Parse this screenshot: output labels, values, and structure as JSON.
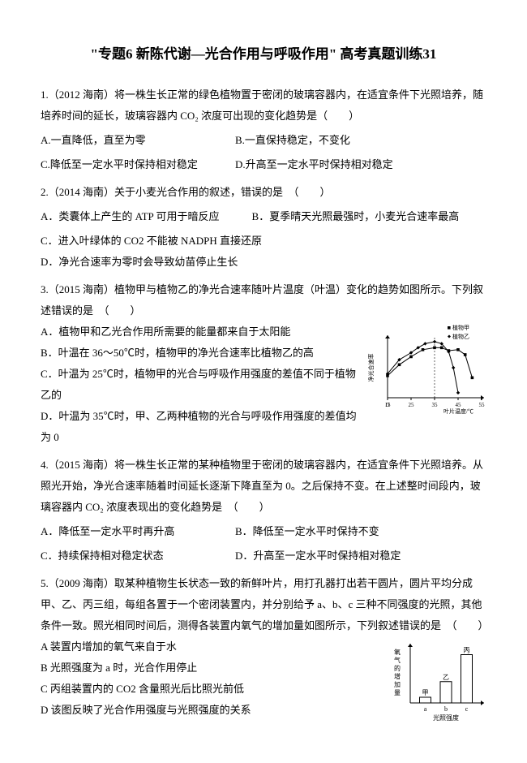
{
  "title": "\"专题6 新陈代谢—光合作用与呼吸作用\" 高考真题训练31",
  "q1": {
    "stem": "1.（2012 海南）将一株生长正常的绿色植物置于密闭的玻璃容器内，在适宜条件下光照培养，随培养时间的延长，玻璃容器内 CO₂ 浓度可出现的变化趋势是（　　）",
    "a": "A.一直降低，直至为零",
    "b": "B.一直保持稳定，不变化",
    "c": "C.降低至一定水平时保持相对稳定",
    "d": "D.升高至一定水平时保持相对稳定"
  },
  "q2": {
    "stem": "2.（2014 海南）关于小麦光合作用的叙述，错误的是　（　　）",
    "a": "A．类囊体上产生的 ATP 可用于暗反应",
    "b": "B．夏季晴天光照最强时，小麦光合速率最高",
    "c": "C．进入叶绿体的 CO2 不能被 NADPH 直接还原",
    "d": "D．净光合速率为零时会导致幼苗停止生长"
  },
  "q3": {
    "stem": "3.（2015 海南）植物甲与植物乙的净光合速率随叶片温度（叶温）变化的趋势如图所示。下列叙述错误的是　（　　）",
    "a": "A．植物甲和乙光合作用所需要的能量都来自于太阳能",
    "b": "B．叶温在 36～50℃时，植物甲的净光合速率比植物乙的高",
    "c": "C．叶温为 25℃时，植物甲的光合与呼吸作用强度的差值不同于植物乙的",
    "d": "D．叶温为 35℃时，甲、乙两种植物的光合与呼吸作用强度的差值均为 0"
  },
  "chart1": {
    "type": "line",
    "legend": [
      "植物甲",
      "植物乙"
    ],
    "x_label": "叶片温度/℃",
    "y_label": "净光合速率",
    "x_ticks": [
      15,
      25,
      35,
      45,
      55
    ],
    "series_jia": [
      [
        15,
        2.2
      ],
      [
        20,
        3.3
      ],
      [
        25,
        4.1
      ],
      [
        30,
        4.8
      ],
      [
        35,
        5.0
      ],
      [
        38,
        5.0
      ],
      [
        41,
        4.7
      ],
      [
        45,
        4.8
      ],
      [
        48,
        4.3
      ],
      [
        51,
        2.0
      ]
    ],
    "series_yi": [
      [
        15,
        2.4
      ],
      [
        20,
        3.8
      ],
      [
        25,
        4.5
      ],
      [
        28,
        5.0
      ],
      [
        31,
        5.4
      ],
      [
        35,
        5.6
      ],
      [
        38,
        5.4
      ],
      [
        41,
        4.6
      ],
      [
        43,
        3.0
      ],
      [
        45,
        0.5
      ]
    ],
    "colors": {
      "jia": "#000000",
      "yi": "#000000",
      "axis": "#000000"
    },
    "width": 150,
    "height": 110
  },
  "q4": {
    "stem": "4.（2015 海南）将一株生长正常的某种植物里于密闭的玻璃容器内，在适宜条件下光照培养。从照光开始，净光合速率随着时间延长逐渐下降直至为 0。之后保持不变。在上述整时间段内，玻璃容器内 CO₂ 浓度表现出的变化趋势是　（　　）",
    "a": "A．降低至一定水平时再升高",
    "b": "B．降低至一定水平时保持不变",
    "c": "C．持续保持相对稳定状态",
    "d": "D．升高至一定水平时保持相对稳定"
  },
  "q5": {
    "stem": "5.（2009 海南）取某种植物生长状态一致的新鲜叶片，用打孔器打出若干圆片，圆片平均分成甲、乙、丙三组，每组各置于一个密闭装置内，并分别给予 a、b、c 三种不同强度的光照，其他条件一致。照光相同时间后，测得各装置内氧气的增加量如图所示，下列叙述错误的是　（　　）",
    "a": "A 装置内增加的氧气来自于水",
    "b": "B 光照强度为 a 时，光合作用停止",
    "c": "C 丙组装置内的 CO2 含量照光后比照光前低",
    "d": "D 该图反映了光合作用强度与光照强度的关系"
  },
  "chart2": {
    "type": "bar",
    "x_label": "光照强度",
    "y_label": "氧气的增加量",
    "categories": [
      "a",
      "b",
      "c"
    ],
    "bar_labels": [
      "甲",
      "乙",
      "丙"
    ],
    "values": [
      0.4,
      1.5,
      3.4
    ],
    "bar_color": "#ffffff",
    "border_color": "#000000",
    "width": 120,
    "height": 100
  }
}
